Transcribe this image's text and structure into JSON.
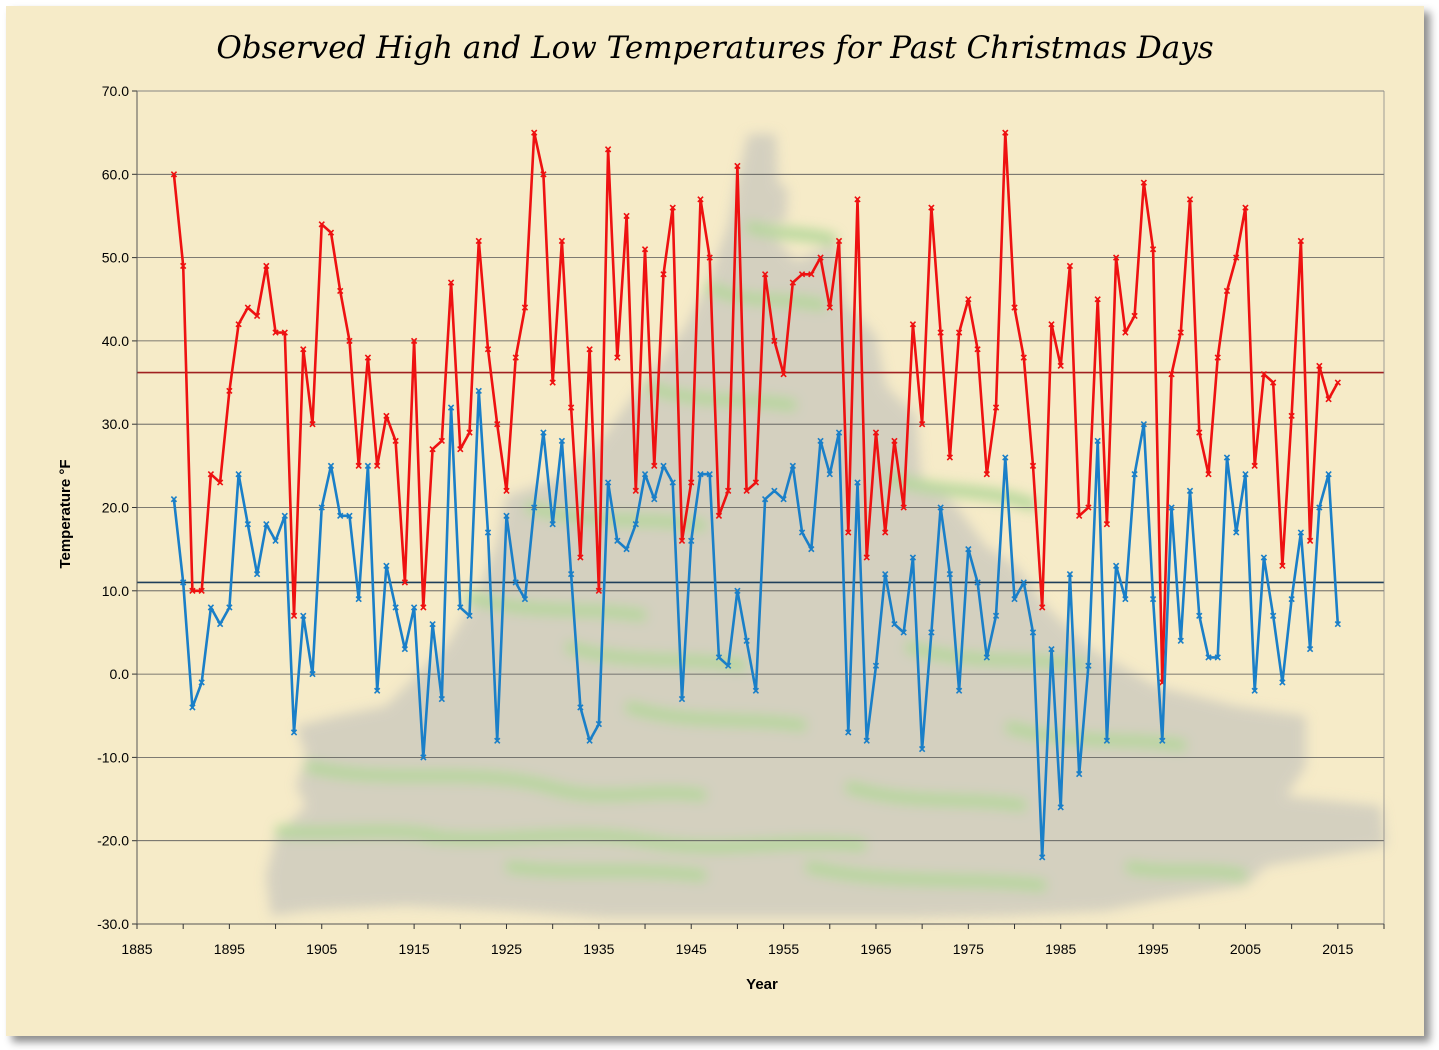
{
  "colors": {
    "background": "#f6ebc8",
    "high": "#ee1111",
    "low": "#1a7fc8",
    "high_mean_line": "#a02020",
    "low_mean_line": "#1f3f5a",
    "grid": "#555555"
  },
  "chart_data": {
    "type": "line",
    "title": "Observed High and Low Temperatures for Past Christmas Days",
    "xlabel": "Year",
    "ylabel": "Temperature °F",
    "xlim": [
      1885,
      2020
    ],
    "ylim": [
      -30,
      70
    ],
    "x_ticks": [
      "1885",
      "1895",
      "1905",
      "1915",
      "1925",
      "1935",
      "1945",
      "1955",
      "1965",
      "1975",
      "1985",
      "1995",
      "2005",
      "2015"
    ],
    "y_ticks": [
      "70.0",
      "60.0",
      "50.0",
      "40.0",
      "30.0",
      "20.0",
      "10.0",
      "0.0",
      "-10.0",
      "-20.0",
      "-30.0"
    ],
    "grid": "horizontal",
    "legend": "none",
    "reference_lines": [
      {
        "series": "high",
        "value": 36.2
      },
      {
        "series": "low",
        "value": 11.0
      }
    ],
    "x_start": 1889,
    "x_step": 1,
    "series": [
      {
        "id": "high",
        "values": [
          60,
          49,
          10,
          10,
          24,
          23,
          34,
          42,
          44,
          43,
          49,
          41,
          41,
          7,
          39,
          30,
          54,
          53,
          46,
          40,
          25,
          38,
          25,
          31,
          28,
          11,
          40,
          8,
          27,
          28,
          47,
          27,
          29,
          52,
          39,
          30,
          22,
          38,
          44,
          65,
          60,
          35,
          52,
          32,
          14,
          39,
          10,
          63,
          38,
          55,
          22,
          51,
          25,
          48,
          56,
          16,
          23,
          57,
          50,
          19,
          22,
          61,
          22,
          23,
          48,
          40,
          36,
          47,
          48,
          48,
          50,
          44,
          52,
          17,
          57,
          14,
          29,
          17,
          28,
          20,
          42,
          30,
          56,
          41,
          26,
          41,
          45,
          39,
          24,
          32,
          65,
          44,
          38,
          25,
          8,
          42,
          37,
          49,
          19,
          20,
          45,
          18,
          50,
          41,
          43,
          59,
          51,
          -1,
          36,
          41,
          57,
          29,
          24,
          38,
          46,
          50,
          56,
          25,
          36,
          35,
          13,
          31,
          52,
          16,
          37,
          33,
          35
        ]
      },
      {
        "id": "low",
        "values": [
          21,
          11,
          -4,
          -1,
          8,
          6,
          8,
          24,
          18,
          12,
          18,
          16,
          19,
          -7,
          7,
          0,
          20,
          25,
          19,
          19,
          9,
          25,
          -2,
          13,
          8,
          3,
          8,
          -10,
          6,
          -3,
          32,
          8,
          7,
          34,
          17,
          -8,
          19,
          11,
          9,
          20,
          29,
          18,
          28,
          12,
          -4,
          -8,
          -6,
          23,
          16,
          15,
          18,
          24,
          21,
          25,
          23,
          -3,
          16,
          24,
          24,
          2,
          1,
          10,
          4,
          -2,
          21,
          22,
          21,
          25,
          17,
          15,
          28,
          24,
          29,
          -7,
          23,
          -8,
          1,
          12,
          6,
          5,
          14,
          -9,
          5,
          20,
          12,
          -2,
          15,
          11,
          2,
          7,
          26,
          9,
          11,
          5,
          -22,
          3,
          -16,
          12,
          -12,
          1,
          28,
          -8,
          13,
          9,
          24,
          30,
          9,
          -8,
          20,
          4,
          22,
          7,
          2,
          2,
          26,
          17,
          24,
          -2,
          14,
          7,
          -1,
          9,
          17,
          3,
          20,
          24,
          6
        ]
      }
    ]
  }
}
